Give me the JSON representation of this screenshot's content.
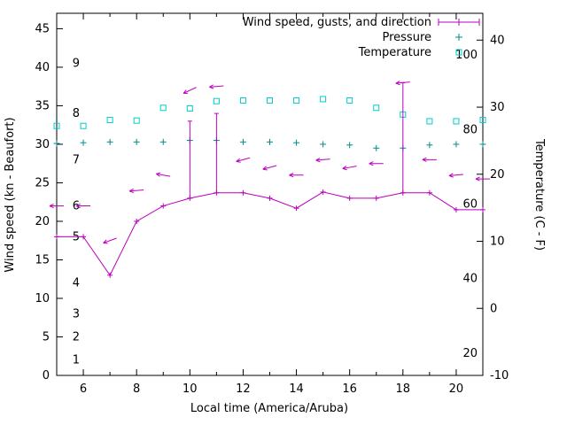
{
  "chart_data": {
    "type": "line",
    "title": "",
    "xlabel": "Local time (America/Aruba)",
    "ylabel": "Wind speed (kn - Beaufort)",
    "y2label": "Temperature (C - F)",
    "x_range": [
      5,
      21
    ],
    "x_major_ticks": [
      6,
      8,
      10,
      12,
      14,
      16,
      18,
      20
    ],
    "x_minor_ticks": [
      5,
      7,
      9,
      11,
      13,
      15,
      17,
      19,
      21
    ],
    "y_left": {
      "range": [
        0,
        47
      ],
      "ticks": [
        0,
        5,
        10,
        15,
        20,
        25,
        30,
        35,
        40,
        45
      ]
    },
    "y_right": {
      "range": [
        -10,
        44
      ],
      "ticks": [
        -10,
        0,
        10,
        20,
        30,
        40
      ]
    },
    "beaufort_scale": [
      {
        "label": "1",
        "kn": 2
      },
      {
        "label": "2",
        "kn": 5
      },
      {
        "label": "3",
        "kn": 8
      },
      {
        "label": "4",
        "kn": 12
      },
      {
        "label": "5",
        "kn": 18
      },
      {
        "label": "6",
        "kn": 22
      },
      {
        "label": "7",
        "kn": 28
      },
      {
        "label": "8",
        "kn": 34
      },
      {
        "label": "9",
        "kn": 40.5
      }
    ],
    "fahrenheit_scale": [
      {
        "label": "20",
        "f": 20
      },
      {
        "label": "40",
        "f": 40
      },
      {
        "label": "60",
        "f": 60
      },
      {
        "label": "80",
        "f": 80
      },
      {
        "label": "100",
        "f": 100
      }
    ],
    "legend": [
      {
        "label": "Wind speed, gusts, and direction",
        "series": "wind"
      },
      {
        "label": "Pressure",
        "series": "pressure"
      },
      {
        "label": "Temperature",
        "series": "temperature"
      }
    ],
    "x": [
      5,
      6,
      7,
      8,
      9,
      10,
      11,
      12,
      13,
      14,
      15,
      16,
      17,
      18,
      19,
      20,
      21
    ],
    "series": {
      "wind": {
        "name": "Wind speed, gusts, and direction",
        "color": "#bb00bb",
        "speed_kn": [
          18,
          18,
          13,
          20,
          22,
          23,
          23.7,
          23.7,
          23,
          21.7,
          23.8,
          23,
          23,
          23.7,
          23.7,
          21.5,
          21.5
        ],
        "gust_kn": [
          null,
          null,
          null,
          null,
          null,
          33,
          34,
          null,
          null,
          null,
          null,
          null,
          null,
          38,
          null,
          null,
          null
        ],
        "dir_marker_kn": [
          22,
          22,
          17.5,
          24,
          26,
          37,
          37.5,
          28,
          27,
          26,
          28,
          27,
          27.5,
          38,
          28,
          26,
          25.5
        ],
        "dir_angle_deg": [
          180,
          180,
          200,
          185,
          170,
          205,
          185,
          195,
          195,
          180,
          185,
          190,
          180,
          185,
          180,
          185,
          180
        ]
      },
      "pressure": {
        "name": "Pressure",
        "color": "#008b8b",
        "values_inhg": [
          30.1,
          30.2,
          30.3,
          30.3,
          30.3,
          30.5,
          30.5,
          30.3,
          30.3,
          30.2,
          30.0,
          29.9,
          29.5,
          29.5,
          29.9,
          30.0,
          30.0
        ]
      },
      "temperature": {
        "name": "Temperature",
        "color": "#00cdcd",
        "values_c": [
          27.2,
          27.2,
          28.1,
          28.0,
          29.9,
          29.8,
          30.9,
          31.0,
          31.0,
          31.0,
          31.2,
          31.0,
          29.9,
          28.9,
          27.9,
          27.9,
          28.1
        ]
      }
    }
  }
}
